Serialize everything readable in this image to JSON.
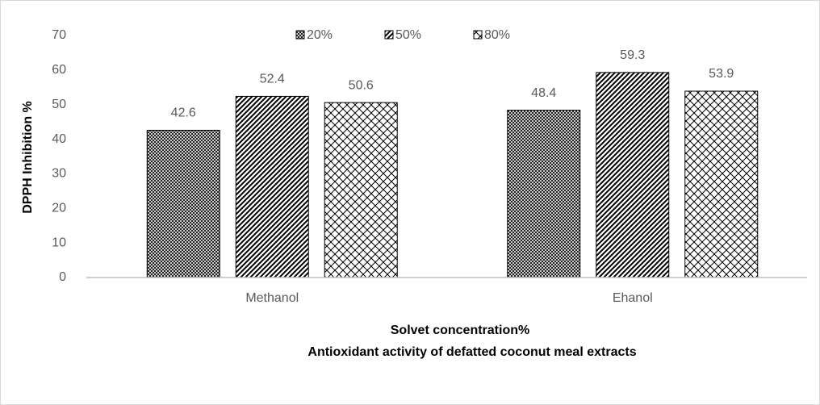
{
  "chart_data": {
    "type": "bar",
    "title": "Antioxidant activity of defatted coconut meal extracts",
    "xlabel": "Solvet concentration%",
    "ylabel": "DPPH Inhibition %",
    "categories": [
      "Methanol",
      "Ehanol"
    ],
    "series": [
      {
        "name": "20%",
        "color": "#000000",
        "values": [
          42.6,
          48.4
        ]
      },
      {
        "name": "50%",
        "color": "#000000",
        "values": [
          52.4,
          59.3
        ]
      },
      {
        "name": "80%",
        "color": "#000000",
        "values": [
          50.6,
          53.9
        ]
      }
    ],
    "ylim": [
      0,
      70
    ],
    "yticks": [
      0,
      10,
      20,
      30,
      40,
      50,
      60,
      70
    ],
    "grid": false,
    "legend": "top"
  }
}
